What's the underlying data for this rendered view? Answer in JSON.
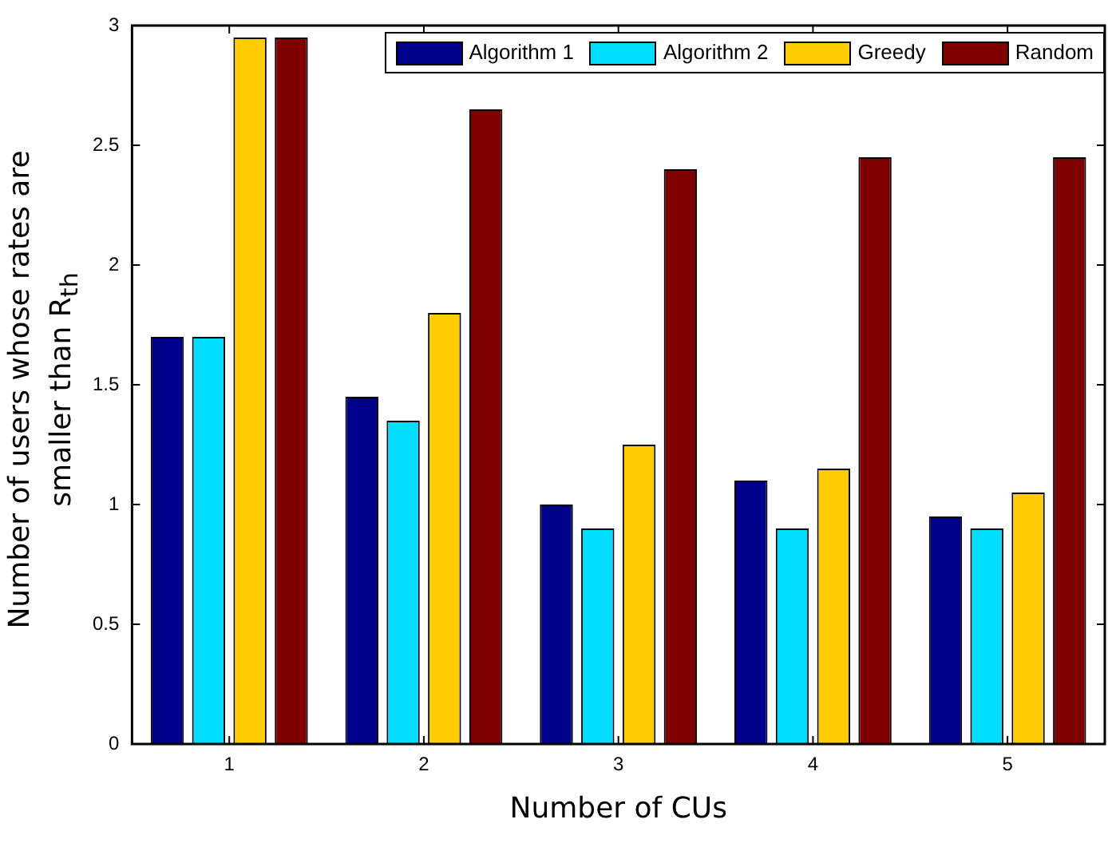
{
  "chart_data": {
    "type": "bar",
    "xlabel": "Number of CUs",
    "ylabel": "Number of users whose rates are smaller than R$_{th}$",
    "categories": [
      "1",
      "2",
      "3",
      "4",
      "5"
    ],
    "series": [
      {
        "name": "Algorithm 1",
        "color": "#00008b",
        "values": [
          1.7,
          1.45,
          1.0,
          1.1,
          0.95
        ]
      },
      {
        "name": "Algorithm 2",
        "color": "#00ddff",
        "values": [
          1.7,
          1.35,
          0.9,
          0.9,
          0.9
        ]
      },
      {
        "name": "Greedy",
        "color": "#ffcc00",
        "values": [
          2.95,
          1.8,
          1.25,
          1.15,
          1.05
        ]
      },
      {
        "name": "Random",
        "color": "#800000",
        "values": [
          2.95,
          2.65,
          2.4,
          2.45,
          2.45
        ]
      }
    ],
    "ylim": [
      0,
      3
    ],
    "yticks": [
      0,
      0.5,
      1,
      1.5,
      2,
      2.5,
      3
    ],
    "grid": false,
    "legend": "top right"
  }
}
